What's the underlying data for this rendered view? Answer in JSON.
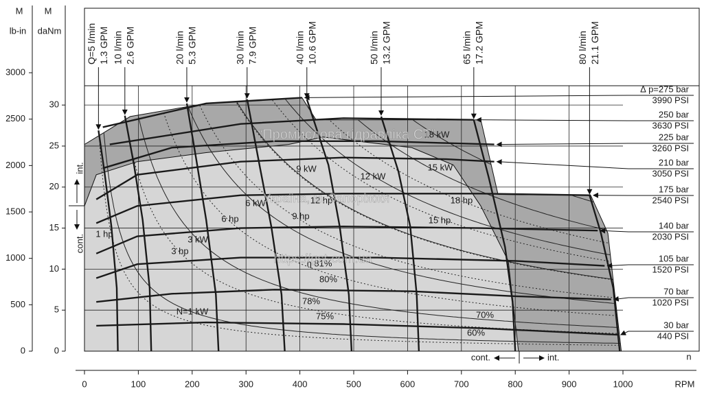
{
  "chart_data": {
    "type": "motor-performance",
    "xlabel": "RPM",
    "xlabel_plot": "n",
    "xlim": [
      0,
      1000
    ],
    "xticks": [
      0,
      100,
      200,
      300,
      400,
      500,
      600,
      700,
      800,
      900,
      1000
    ],
    "ylabel_symbol": "M",
    "ylabel_unit": "daNm",
    "ylim": [
      0,
      41.8
    ],
    "yticks": [
      0,
      5,
      10,
      15,
      20,
      25,
      30
    ],
    "y2label_symbol": "M",
    "y2label_unit": "lb-in",
    "y2lim": [
      0,
      3695
    ],
    "y2ticks": [
      0,
      500,
      1000,
      1500,
      2000,
      2500,
      3000
    ],
    "grid": true,
    "regions": [
      {
        "name": "int.",
        "color": "#a8a8a8",
        "x": [
          0,
          0,
          85,
          226,
          404,
          430,
          736,
          768,
          940,
          972,
          997
        ],
        "values": [
          0,
          25.2,
          28.6,
          30.2,
          30.9,
          28.2,
          28.2,
          19.1,
          19.0,
          14.4,
          0
        ]
      },
      {
        "name": "cont.",
        "color": "#d6d6d6",
        "x": [
          0,
          0,
          22,
          98,
          226,
          379,
          443,
          608,
          685,
          736,
          787,
          806
        ],
        "values": [
          0,
          17.7,
          21.5,
          23.1,
          24.2,
          25.2,
          26.1,
          24.8,
          22.7,
          17.7,
          11.0,
          0
        ]
      }
    ],
    "pressure_lines": [
      {
        "name": "∆ p=275 bar",
        "psi": "3990 PSI",
        "x": [
          34,
          226,
          404
        ],
        "values": [
          27.3,
          30.2,
          30.9
        ]
      },
      {
        "name": "250 bar",
        "psi": "3630 PSI",
        "x": [
          47,
          290,
          481,
          723
        ],
        "values": [
          25.2,
          27.7,
          28.4,
          28.2
        ]
      },
      {
        "name": "225 bar",
        "psi": "3260 PSI",
        "x": [
          34,
          162,
          353,
          545,
          761
        ],
        "values": [
          22.3,
          24.8,
          25.6,
          25.6,
          25.2
        ]
      },
      {
        "name": "210 bar",
        "psi": "3050 PSI",
        "x": [
          22,
          98,
          290,
          481,
          672,
          761
        ],
        "values": [
          18.5,
          21.5,
          23.1,
          23.6,
          23.4,
          23.1
        ]
      },
      {
        "name": "175 bar",
        "psi": "2540 PSI",
        "x": [
          22,
          98,
          290,
          481,
          736,
          940
        ],
        "values": [
          15.6,
          17.7,
          19.0,
          19.2,
          19.2,
          19.0
        ]
      },
      {
        "name": "140 bar",
        "psi": "2030 PSI",
        "x": [
          22,
          98,
          290,
          481,
          736,
          953
        ],
        "values": [
          11.9,
          14.0,
          15.0,
          15.2,
          15.0,
          14.7
        ]
      },
      {
        "name": "105 bar",
        "psi": "1520 PSI",
        "x": [
          22,
          98,
          290,
          545,
          800,
          966
        ],
        "values": [
          8.9,
          10.6,
          11.4,
          11.4,
          11.0,
          10.4
        ]
      },
      {
        "name": "70 bar",
        "psi": "1020 PSI",
        "x": [
          22,
          162,
          353,
          608,
          800,
          978
        ],
        "values": [
          6.0,
          7.0,
          7.5,
          7.3,
          6.7,
          6.3
        ]
      },
      {
        "name": "30 bar",
        "psi": "440 PSI",
        "x": [
          22,
          226,
          481,
          736,
          991
        ],
        "values": [
          3.1,
          3.5,
          3.3,
          2.8,
          2.0
        ]
      }
    ],
    "flow_lines": [
      {
        "name": "Q=5 l/min",
        "gpm": "1.3 GPM",
        "x": [
          26,
          37,
          50,
          60,
          62
        ],
        "values": [
          26.9,
          21.9,
          15.2,
          7.7,
          0
        ]
      },
      {
        "name": "10 l/min",
        "gpm": "2.6 GPM",
        "x": [
          75,
          92,
          108,
          121,
          124
        ],
        "values": [
          28.7,
          22.7,
          16.0,
          7.7,
          0
        ]
      },
      {
        "name": "20 l/min",
        "gpm": "5.3 GPM",
        "x": [
          190,
          207,
          226,
          244,
          249
        ],
        "values": [
          30.2,
          23.6,
          16.0,
          6.9,
          0
        ]
      },
      {
        "name": "30 l/min",
        "gpm": "7.9 GPM",
        "x": [
          302,
          325,
          347,
          366,
          372
        ],
        "values": [
          30.7,
          22.7,
          15.2,
          6.9,
          0
        ]
      },
      {
        "name": "40 l/min",
        "gpm": "10.6 GPM",
        "x": [
          413,
          453,
          474,
          491,
          496
        ],
        "values": [
          30.7,
          22.7,
          15.2,
          6.9,
          0
        ]
      },
      {
        "name": "50 l/min",
        "gpm": "13.2 GPM",
        "x": [
          551,
          583,
          605,
          617,
          621
        ],
        "values": [
          28.6,
          21.9,
          15.2,
          6.9,
          0
        ]
      },
      {
        "name": "65 l/min",
        "gpm": "17.2 GPM",
        "x": [
          723,
          751,
          781,
          795,
          800
        ],
        "values": [
          28.2,
          21.1,
          12.7,
          6.0,
          0
        ]
      },
      {
        "name": "80 l/min",
        "gpm": "21.1 GPM",
        "x": [
          938,
          959,
          982,
          994
        ],
        "values": [
          19.0,
          14.4,
          7.7,
          0
        ]
      }
    ],
    "kw_lines": [
      {
        "label": "N=1 kW",
        "value": 1
      },
      {
        "label": "3 kW",
        "value": 3
      },
      {
        "label": "6 kW",
        "value": 6
      },
      {
        "label": "9 kW",
        "value": 9
      },
      {
        "label": "12 kW",
        "value": 12
      },
      {
        "label": "15 kW",
        "value": 15
      },
      {
        "label": "18 kW",
        "value": 18
      }
    ],
    "hp_lines": [
      {
        "label": "1 hp",
        "value": 1
      },
      {
        "label": "3 hp",
        "value": 3
      },
      {
        "label": "6 hp",
        "value": 6
      },
      {
        "label": "9 hp",
        "value": 9
      },
      {
        "label": "12 hp",
        "value": 12
      },
      {
        "label": "15 hp",
        "value": 15
      },
      {
        "label": "18 hp",
        "value": 18
      }
    ],
    "efficiency_labels": [
      "η 81%",
      "80%",
      "78%",
      "75%",
      "70%",
      "60%"
    ],
    "bottom_labels": [
      "cont.",
      "int."
    ],
    "watermark": [
      "“Промислова гідравліка СТ”",
      "Україна, м. Запоріжжя",
      "https://gst-com.ua"
    ]
  }
}
